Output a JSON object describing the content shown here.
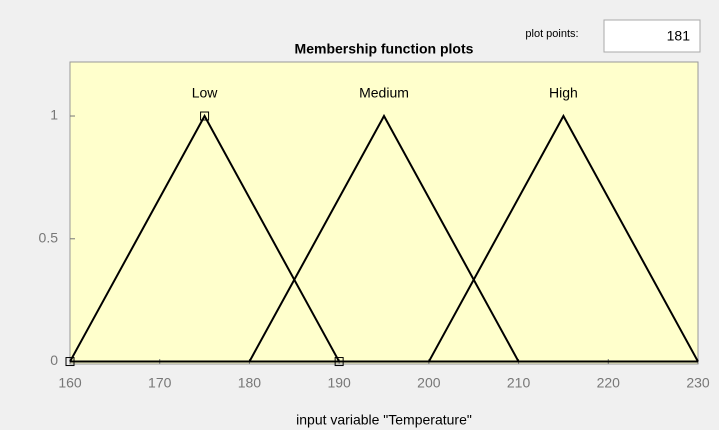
{
  "plot_points": {
    "label": "plot points:",
    "value": 181
  },
  "chart_data": {
    "type": "line",
    "title": "Membership function plots",
    "x_label": "input variable \"Temperature\"",
    "xlim": [
      160,
      230
    ],
    "xticks": [
      160,
      170,
      180,
      190,
      200,
      210,
      220,
      230
    ],
    "ylim": [
      -0.01,
      1.22
    ],
    "yticks": [
      0,
      0.5,
      1
    ],
    "selected": "Low",
    "series": [
      {
        "name": "Low",
        "color": "#000000",
        "x": [
          160,
          175,
          190,
          230
        ],
        "values": [
          0,
          1,
          0,
          0
        ]
      },
      {
        "name": "Medium",
        "color": "#000000",
        "x": [
          160,
          180,
          195,
          210,
          230
        ],
        "values": [
          0,
          0,
          1,
          0,
          0
        ]
      },
      {
        "name": "High",
        "color": "#000000",
        "x": [
          160,
          200,
          215,
          230
        ],
        "values": [
          0,
          0,
          1,
          0
        ]
      }
    ]
  }
}
